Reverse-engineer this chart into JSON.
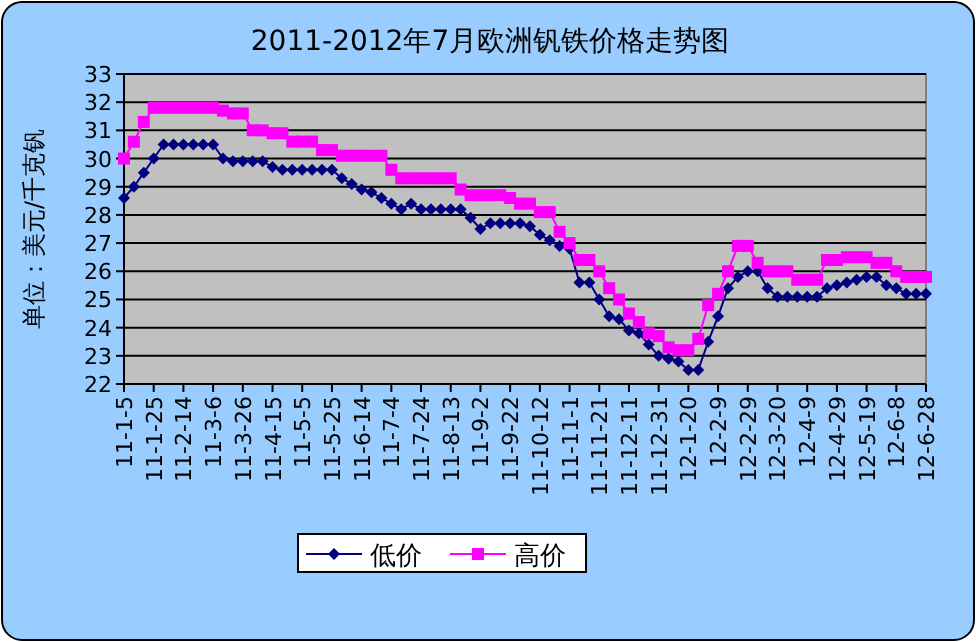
{
  "chart_data": {
    "type": "line",
    "title": "2011-2012年7月欧洲钒铁价格走势图",
    "ylabel": "单位：美元/千克钒",
    "categories": [
      "11-1-5",
      null,
      null,
      "11-1-25",
      null,
      null,
      "11-2-14",
      null,
      null,
      "11-3-6",
      null,
      null,
      "11-3-26",
      null,
      null,
      "11-4-15",
      null,
      null,
      "11-5-5",
      null,
      null,
      "11-5-25",
      null,
      null,
      "11-6-14",
      null,
      null,
      "11-7-4",
      null,
      null,
      "11-7-24",
      null,
      null,
      "11-8-13",
      null,
      null,
      "11-9-2",
      null,
      null,
      "11-9-22",
      null,
      null,
      "11-10-12",
      null,
      null,
      "11-11-1",
      null,
      null,
      "11-11-21",
      null,
      null,
      "11-12-11",
      null,
      null,
      "11-12-31",
      null,
      null,
      "12-1-20",
      null,
      null,
      "12-2-9",
      null,
      null,
      "12-2-29",
      null,
      null,
      "12-3-20",
      null,
      null,
      "12-4-9",
      null,
      null,
      "12-4-29",
      null,
      null,
      "12-5-19",
      null,
      null,
      "12-6-8",
      null,
      null,
      "12-6-28"
    ],
    "series": [
      {
        "name": "低价",
        "color": "#000080",
        "marker": "diamond",
        "values": [
          28.6,
          29.0,
          29.5,
          30.0,
          30.5,
          30.5,
          30.5,
          30.5,
          30.5,
          30.5,
          30.0,
          29.9,
          29.9,
          29.9,
          29.9,
          29.7,
          29.6,
          29.6,
          29.6,
          29.6,
          29.6,
          29.6,
          29.3,
          29.1,
          28.9,
          28.8,
          28.6,
          28.4,
          28.2,
          28.4,
          28.2,
          28.2,
          28.2,
          28.2,
          28.2,
          27.9,
          27.5,
          27.7,
          27.7,
          27.7,
          27.7,
          27.6,
          27.3,
          27.1,
          26.9,
          26.8,
          25.6,
          25.6,
          25.0,
          24.4,
          24.3,
          23.9,
          23.8,
          23.4,
          23.0,
          22.9,
          22.8,
          22.5,
          22.5,
          23.5,
          24.4,
          25.4,
          25.8,
          26.0,
          26.0,
          25.4,
          25.1,
          25.1,
          25.1,
          25.1,
          25.1,
          25.4,
          25.5,
          25.6,
          25.7,
          25.8,
          25.8,
          25.5,
          25.4,
          25.2,
          25.2,
          25.2
        ]
      },
      {
        "name": "高价",
        "color": "#ff00ff",
        "marker": "square",
        "values": [
          30.0,
          30.6,
          31.3,
          31.8,
          31.8,
          31.8,
          31.8,
          31.8,
          31.8,
          31.8,
          31.7,
          31.6,
          31.6,
          31.0,
          31.0,
          30.9,
          30.9,
          30.6,
          30.6,
          30.6,
          30.3,
          30.3,
          30.1,
          30.1,
          30.1,
          30.1,
          30.1,
          29.6,
          29.3,
          29.3,
          29.3,
          29.3,
          29.3,
          29.3,
          28.9,
          28.7,
          28.7,
          28.7,
          28.7,
          28.6,
          28.4,
          28.4,
          28.1,
          28.1,
          27.4,
          27.0,
          26.4,
          26.4,
          26.0,
          25.4,
          25.0,
          24.5,
          24.2,
          23.8,
          23.7,
          23.3,
          23.2,
          23.2,
          23.6,
          24.8,
          25.2,
          26.0,
          26.9,
          26.9,
          26.3,
          26.0,
          26.0,
          26.0,
          25.7,
          25.7,
          25.7,
          26.4,
          26.4,
          26.5,
          26.5,
          26.5,
          26.3,
          26.3,
          26.0,
          25.8,
          25.8,
          25.8
        ]
      }
    ],
    "ylim": [
      22,
      33
    ],
    "yticks": [
      22,
      23,
      24,
      25,
      26,
      27,
      28,
      29,
      30,
      31,
      32,
      33
    ],
    "grid": "y",
    "legend": "bottom",
    "line_style": "solid"
  }
}
